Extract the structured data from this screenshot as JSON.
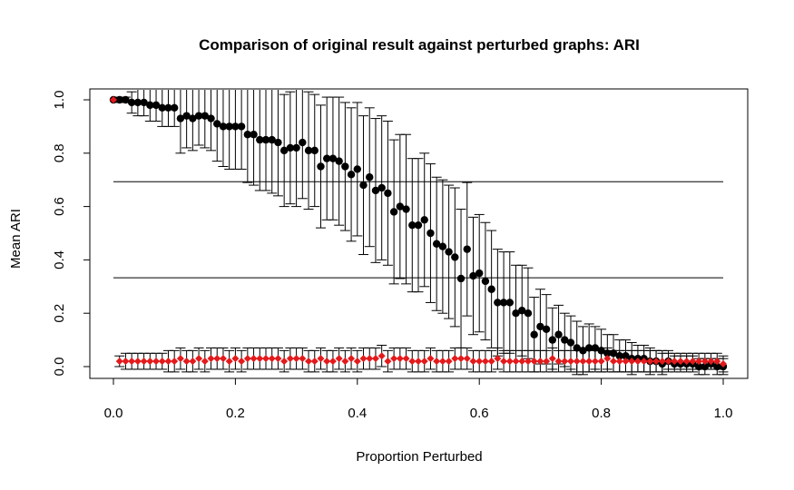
{
  "chart_data": {
    "type": "scatter",
    "title": "Comparison of original result against perturbed graphs: ARI",
    "xlabel": "Proportion Perturbed",
    "ylabel": "Mean ARI",
    "xlim": [
      0,
      1
    ],
    "ylim": [
      0,
      1
    ],
    "x_ticks": [
      "0.0",
      "0.2",
      "0.4",
      "0.6",
      "0.8",
      "1.0"
    ],
    "y_ticks": [
      "0.0",
      "0.2",
      "0.4",
      "0.6",
      "0.8",
      "1.0"
    ],
    "grid": false,
    "legend": "none",
    "reference_lines": [
      0.693,
      0.333
    ],
    "series": [
      {
        "color": "#000000",
        "marker": "circle",
        "x": [
          0.0,
          0.01,
          0.02,
          0.03,
          0.04,
          0.05,
          0.06,
          0.07,
          0.08,
          0.09,
          0.1,
          0.11,
          0.12,
          0.13,
          0.14,
          0.15,
          0.16,
          0.17,
          0.18,
          0.19,
          0.2,
          0.21,
          0.22,
          0.23,
          0.24,
          0.25,
          0.26,
          0.27,
          0.28,
          0.29,
          0.3,
          0.31,
          0.32,
          0.33,
          0.34,
          0.35,
          0.36,
          0.37,
          0.38,
          0.39,
          0.4,
          0.41,
          0.42,
          0.43,
          0.44,
          0.45,
          0.46,
          0.47,
          0.48,
          0.49,
          0.5,
          0.51,
          0.52,
          0.53,
          0.54,
          0.55,
          0.56,
          0.57,
          0.58,
          0.59,
          0.6,
          0.61,
          0.62,
          0.63,
          0.64,
          0.65,
          0.66,
          0.67,
          0.68,
          0.69,
          0.7,
          0.71,
          0.72,
          0.73,
          0.74,
          0.75,
          0.76,
          0.77,
          0.78,
          0.79,
          0.8,
          0.81,
          0.82,
          0.83,
          0.84,
          0.85,
          0.86,
          0.87,
          0.88,
          0.89,
          0.9,
          0.91,
          0.92,
          0.93,
          0.94,
          0.95,
          0.96,
          0.97,
          0.98,
          0.99,
          1.0
        ],
        "y": [
          1.0,
          1.0,
          1.0,
          0.99,
          0.99,
          0.99,
          0.98,
          0.98,
          0.97,
          0.97,
          0.97,
          0.93,
          0.94,
          0.93,
          0.94,
          0.94,
          0.93,
          0.91,
          0.9,
          0.9,
          0.9,
          0.9,
          0.87,
          0.87,
          0.85,
          0.85,
          0.85,
          0.84,
          0.81,
          0.82,
          0.82,
          0.84,
          0.81,
          0.81,
          0.75,
          0.78,
          0.78,
          0.77,
          0.75,
          0.72,
          0.74,
          0.68,
          0.71,
          0.66,
          0.67,
          0.65,
          0.58,
          0.6,
          0.59,
          0.53,
          0.53,
          0.55,
          0.5,
          0.46,
          0.45,
          0.43,
          0.41,
          0.33,
          0.44,
          0.34,
          0.35,
          0.32,
          0.29,
          0.24,
          0.24,
          0.24,
          0.2,
          0.21,
          0.2,
          0.12,
          0.15,
          0.14,
          0.1,
          0.12,
          0.1,
          0.09,
          0.07,
          0.06,
          0.07,
          0.07,
          0.06,
          0.05,
          0.05,
          0.04,
          0.04,
          0.03,
          0.03,
          0.03,
          0.02,
          0.02,
          0.01,
          0.02,
          0.01,
          0.01,
          0.01,
          0.01,
          0.0,
          0.0,
          0.01,
          0.0,
          0.0
        ],
        "err": [
          0.0,
          0.01,
          0.01,
          0.04,
          0.05,
          0.05,
          0.06,
          0.06,
          0.07,
          0.07,
          0.07,
          0.13,
          0.12,
          0.12,
          0.11,
          0.12,
          0.12,
          0.14,
          0.15,
          0.16,
          0.16,
          0.16,
          0.18,
          0.19,
          0.19,
          0.19,
          0.2,
          0.2,
          0.21,
          0.21,
          0.22,
          0.21,
          0.22,
          0.21,
          0.23,
          0.23,
          0.23,
          0.24,
          0.24,
          0.25,
          0.25,
          0.26,
          0.26,
          0.27,
          0.27,
          0.27,
          0.27,
          0.27,
          0.28,
          0.25,
          0.25,
          0.25,
          0.26,
          0.25,
          0.25,
          0.25,
          0.26,
          0.26,
          0.25,
          0.22,
          0.22,
          0.22,
          0.22,
          0.2,
          0.19,
          0.19,
          0.18,
          0.17,
          0.17,
          0.14,
          0.14,
          0.13,
          0.12,
          0.11,
          0.1,
          0.1,
          0.1,
          0.09,
          0.09,
          0.08,
          0.08,
          0.07,
          0.07,
          0.06,
          0.06,
          0.06,
          0.05,
          0.05,
          0.05,
          0.04,
          0.04,
          0.04,
          0.03,
          0.03,
          0.03,
          0.03,
          0.03,
          0.03,
          0.02,
          0.03,
          0.03
        ]
      },
      {
        "color": "#e31a1c",
        "marker": "diamond",
        "x": [
          0.0,
          0.01,
          0.02,
          0.03,
          0.04,
          0.05,
          0.06,
          0.07,
          0.08,
          0.09,
          0.1,
          0.11,
          0.12,
          0.13,
          0.14,
          0.15,
          0.16,
          0.17,
          0.18,
          0.19,
          0.2,
          0.21,
          0.22,
          0.23,
          0.24,
          0.25,
          0.26,
          0.27,
          0.28,
          0.29,
          0.3,
          0.31,
          0.32,
          0.33,
          0.34,
          0.35,
          0.36,
          0.37,
          0.38,
          0.39,
          0.4,
          0.41,
          0.42,
          0.43,
          0.44,
          0.45,
          0.46,
          0.47,
          0.48,
          0.49,
          0.5,
          0.51,
          0.52,
          0.53,
          0.54,
          0.55,
          0.56,
          0.57,
          0.58,
          0.59,
          0.6,
          0.61,
          0.62,
          0.63,
          0.64,
          0.65,
          0.66,
          0.67,
          0.68,
          0.69,
          0.7,
          0.71,
          0.72,
          0.73,
          0.74,
          0.75,
          0.76,
          0.77,
          0.78,
          0.79,
          0.8,
          0.81,
          0.82,
          0.83,
          0.84,
          0.85,
          0.86,
          0.87,
          0.88,
          0.89,
          0.9,
          0.91,
          0.92,
          0.93,
          0.94,
          0.95,
          0.96,
          0.97,
          0.98,
          0.99,
          1.0
        ],
        "y": [
          1.0,
          0.02,
          0.02,
          0.02,
          0.02,
          0.02,
          0.02,
          0.02,
          0.02,
          0.02,
          0.02,
          0.03,
          0.02,
          0.02,
          0.03,
          0.02,
          0.03,
          0.03,
          0.03,
          0.02,
          0.03,
          0.02,
          0.03,
          0.03,
          0.03,
          0.03,
          0.03,
          0.03,
          0.02,
          0.03,
          0.03,
          0.03,
          0.02,
          0.02,
          0.03,
          0.02,
          0.02,
          0.03,
          0.02,
          0.03,
          0.02,
          0.03,
          0.03,
          0.03,
          0.04,
          0.02,
          0.03,
          0.03,
          0.03,
          0.02,
          0.02,
          0.02,
          0.03,
          0.02,
          0.02,
          0.02,
          0.03,
          0.03,
          0.03,
          0.02,
          0.02,
          0.02,
          0.02,
          0.03,
          0.02,
          0.02,
          0.02,
          0.02,
          0.02,
          0.02,
          0.02,
          0.02,
          0.03,
          0.02,
          0.02,
          0.02,
          0.02,
          0.02,
          0.02,
          0.02,
          0.02,
          0.03,
          0.02,
          0.02,
          0.02,
          0.02,
          0.02,
          0.02,
          0.02,
          0.02,
          0.02,
          0.02,
          0.02,
          0.02,
          0.02,
          0.02,
          0.02,
          0.02,
          0.02,
          0.02,
          0.01
        ],
        "err": [
          0.0,
          0.02,
          0.03,
          0.03,
          0.03,
          0.03,
          0.03,
          0.03,
          0.03,
          0.04,
          0.04,
          0.04,
          0.04,
          0.04,
          0.04,
          0.04,
          0.04,
          0.04,
          0.04,
          0.04,
          0.04,
          0.04,
          0.04,
          0.04,
          0.04,
          0.04,
          0.04,
          0.04,
          0.04,
          0.04,
          0.04,
          0.04,
          0.04,
          0.04,
          0.04,
          0.04,
          0.04,
          0.04,
          0.04,
          0.04,
          0.04,
          0.04,
          0.04,
          0.04,
          0.04,
          0.04,
          0.04,
          0.04,
          0.04,
          0.04,
          0.04,
          0.04,
          0.04,
          0.04,
          0.04,
          0.04,
          0.04,
          0.04,
          0.04,
          0.04,
          0.04,
          0.04,
          0.04,
          0.04,
          0.04,
          0.04,
          0.04,
          0.04,
          0.04,
          0.04,
          0.04,
          0.04,
          0.04,
          0.04,
          0.04,
          0.04,
          0.04,
          0.04,
          0.04,
          0.04,
          0.04,
          0.04,
          0.04,
          0.04,
          0.04,
          0.04,
          0.04,
          0.04,
          0.04,
          0.04,
          0.04,
          0.03,
          0.03,
          0.03,
          0.03,
          0.03,
          0.03,
          0.03,
          0.03,
          0.03,
          0.03
        ]
      }
    ]
  }
}
